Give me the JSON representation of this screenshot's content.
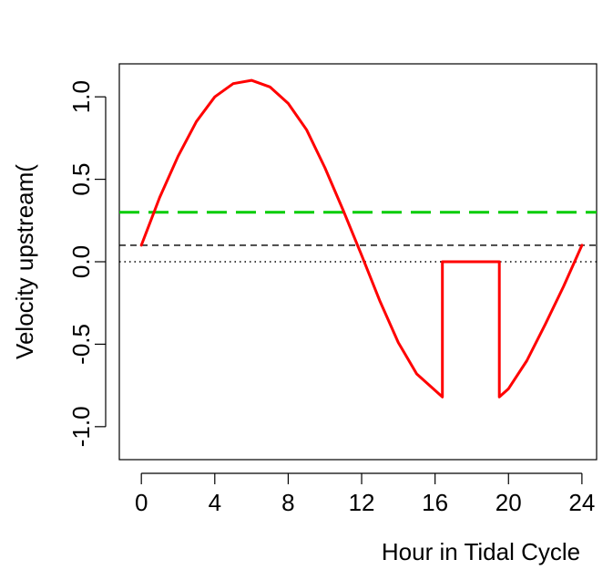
{
  "chart_data": {
    "type": "line",
    "title": "",
    "xlabel": "Hour in Tidal Cycle",
    "ylabel": "Velocity upstream(",
    "xlim": [
      -1.2,
      24.8
    ],
    "ylim": [
      -1.2,
      1.2
    ],
    "x_ticks": [
      0,
      4,
      8,
      12,
      16,
      20,
      24
    ],
    "x_tick_labels": [
      "0",
      "4",
      "8",
      "12",
      "16",
      "20",
      "24"
    ],
    "y_ticks": [
      -1.0,
      -0.5,
      0.0,
      0.5,
      1.0
    ],
    "y_tick_labels": [
      "-1.0",
      "-0.5",
      "0.0",
      "0.5",
      "1.0"
    ],
    "grid": false,
    "series": [
      {
        "color": "#ff0000",
        "style": "solid",
        "x": [
          0,
          1,
          2,
          3,
          4,
          5,
          6,
          7,
          8,
          9,
          10,
          11,
          12,
          13,
          14,
          15,
          16.4,
          16.4,
          19.5,
          19.5,
          20,
          21,
          22,
          23,
          24
        ],
        "y": [
          0.1,
          0.39,
          0.64,
          0.85,
          1.0,
          1.08,
          1.1,
          1.06,
          0.96,
          0.8,
          0.57,
          0.31,
          0.04,
          -0.24,
          -0.49,
          -0.68,
          -0.82,
          0.0,
          0.0,
          -0.82,
          -0.77,
          -0.6,
          -0.38,
          -0.15,
          0.1
        ]
      }
    ],
    "reference_lines": [
      {
        "y": 0.3,
        "color": "#00cc00",
        "style": "long-dash"
      },
      {
        "y": 0.1,
        "color": "#000000",
        "style": "dashed"
      },
      {
        "y": 0.0,
        "color": "#000000",
        "style": "dotted"
      }
    ]
  }
}
